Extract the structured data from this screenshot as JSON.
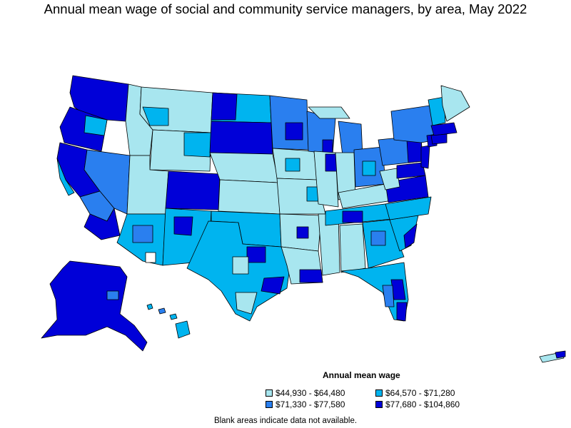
{
  "title": "Annual mean wage of social and community service managers, by area, May 2022",
  "legend": {
    "title": "Annual mean wage",
    "items": [
      {
        "label": "$44,930 - $64,480",
        "color": "#a8e6ef"
      },
      {
        "label": "$64,570 - $71,280",
        "color": "#00b4ef"
      },
      {
        "label": "$71,330 - $77,580",
        "color": "#2a7fef"
      },
      {
        "label": "$77,680 - $104,860",
        "color": "#0000d8"
      }
    ]
  },
  "footnote": "Blank areas indicate data not available.",
  "colors": {
    "tier1": "#a8e6ef",
    "tier2": "#00b4ef",
    "tier3": "#2a7fef",
    "tier4": "#0000d8",
    "border": "#000000"
  }
}
